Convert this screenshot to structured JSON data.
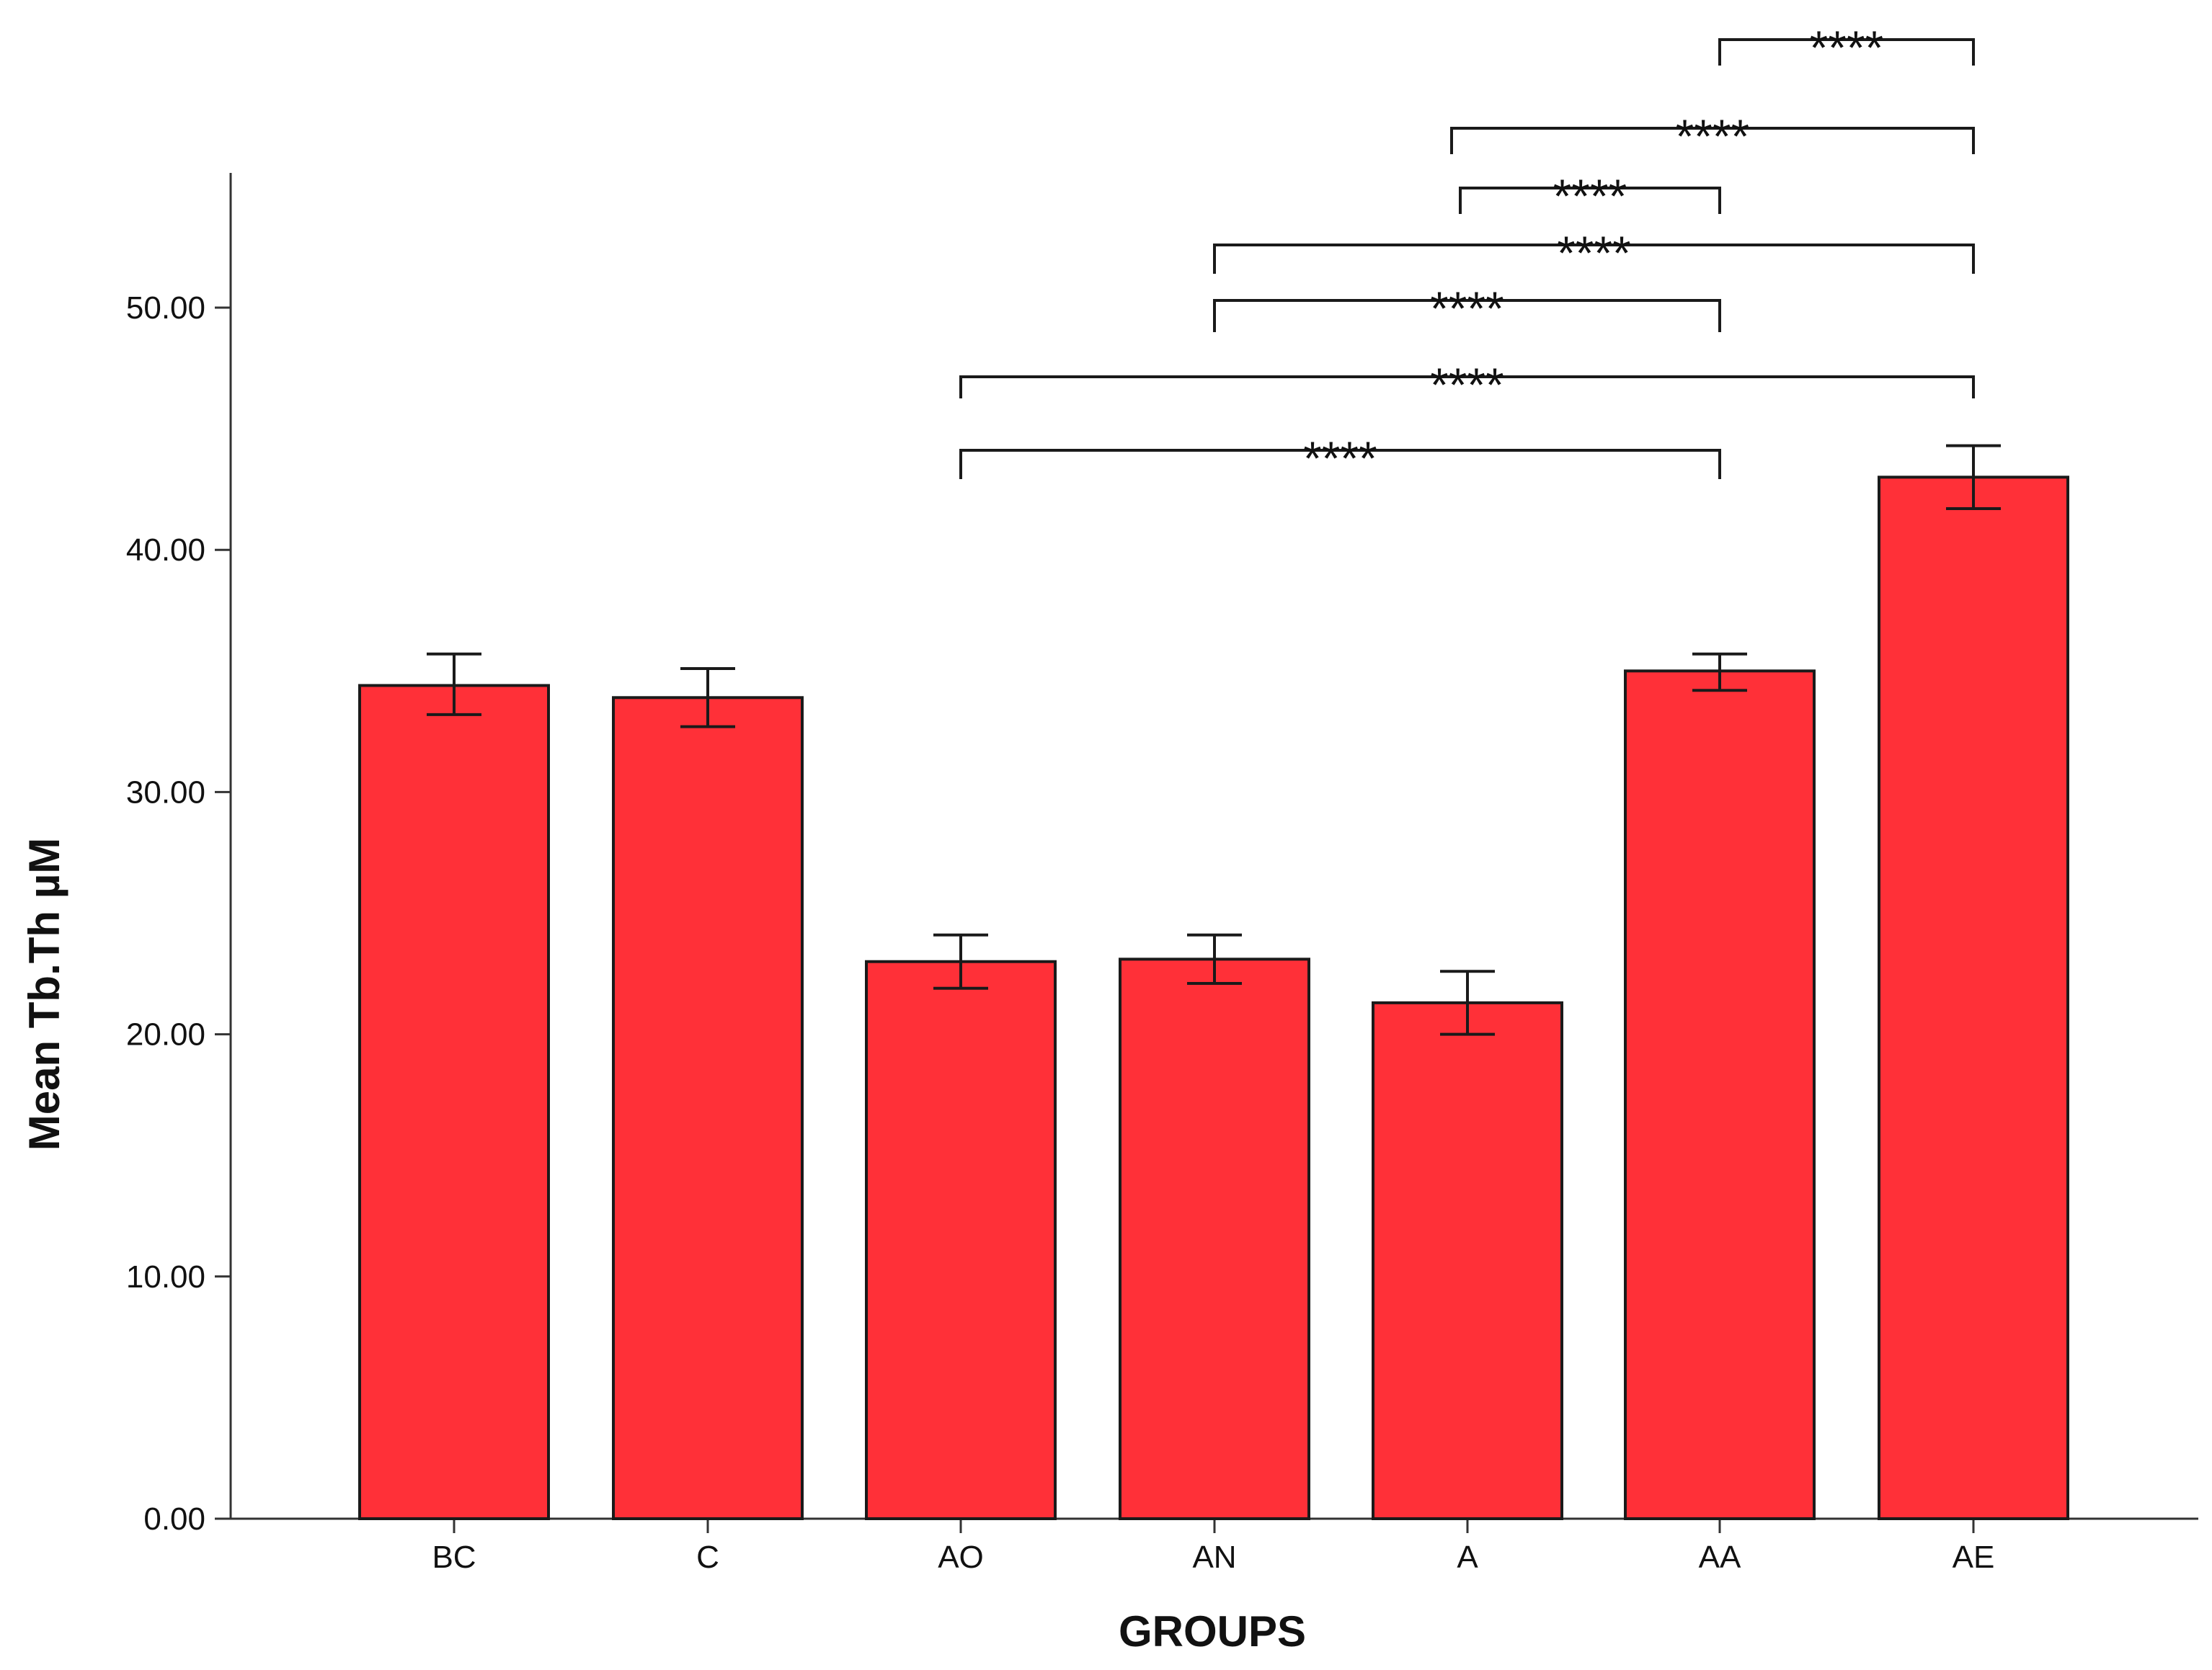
{
  "chart_data": {
    "type": "bar",
    "title": "",
    "xlabel": "GROUPS",
    "ylabel": "Mean Tb.Th µM",
    "categories": [
      "BC",
      "C",
      "AO",
      "AN",
      "A",
      "AA",
      "AE"
    ],
    "values": [
      34.4,
      33.9,
      23.0,
      23.1,
      21.3,
      35.0,
      43.0
    ],
    "error_bars": {
      "lower": [
        33.2,
        32.7,
        21.9,
        22.1,
        20.0,
        34.2,
        41.7
      ],
      "upper": [
        35.7,
        35.1,
        24.1,
        24.1,
        22.6,
        35.7,
        44.3
      ]
    },
    "ylim": [
      0,
      55
    ],
    "yticks": [
      0,
      10,
      20,
      30,
      40,
      50
    ],
    "ytick_labels": [
      "0.00",
      "10.00",
      "20.00",
      "30.00",
      "40.00",
      "50.00"
    ],
    "grid": false,
    "legend": "none",
    "significance": [
      {
        "from": "AO",
        "to": "AA",
        "label": "****"
      },
      {
        "from": "AO",
        "to": "AE",
        "label": "****"
      },
      {
        "from": "AN",
        "to": "AA",
        "label": "****"
      },
      {
        "from": "AN",
        "to": "AE",
        "label": "****"
      },
      {
        "from": "A",
        "to": "AA",
        "label": "****"
      },
      {
        "from": "A",
        "to": "AE",
        "label": "****"
      },
      {
        "from": "AA",
        "to": "AE",
        "label": "****"
      }
    ],
    "colors": {
      "bar_fill": "#ff3038",
      "bar_stroke": "#1a1a1a",
      "axis": "#333333",
      "text": "#111111"
    }
  }
}
